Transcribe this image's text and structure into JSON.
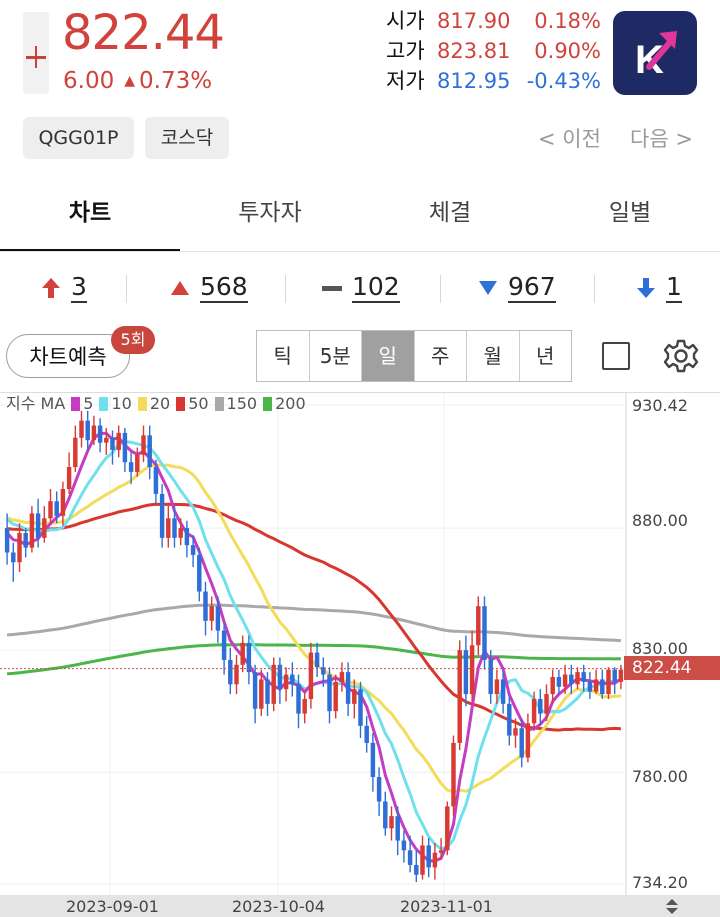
{
  "header": {
    "price": "822.44",
    "change": "6.00",
    "change_pct": "0.73%",
    "open_label": "시가",
    "open_value": "817.90",
    "open_pct": "0.18%",
    "high_label": "고가",
    "high_value": "823.81",
    "high_pct": "0.90%",
    "low_label": "저가",
    "low_value": "812.95",
    "low_pct": "-0.43%",
    "logo_letter": "K",
    "code_chip": "QGG01P",
    "market_chip": "코스닥",
    "prev_link": "< 이전",
    "next_link": "다음 >"
  },
  "tabs": [
    {
      "label": "차트"
    },
    {
      "label": "투자자"
    },
    {
      "label": "체결"
    },
    {
      "label": "일별"
    }
  ],
  "breadth": {
    "upper_limit": "3",
    "up": "568",
    "flat": "102",
    "down": "967",
    "lower_limit": "1"
  },
  "controls": {
    "predict_label": "차트예측",
    "predict_badge": "5회",
    "periods": [
      "틱",
      "5분",
      "일",
      "주",
      "월",
      "년"
    ],
    "active_period": "일"
  },
  "chart_data": {
    "type": "candlestick",
    "legend_prefix": "지수 MA",
    "ma_legend": [
      {
        "label": "5",
        "color": "#c43cc4"
      },
      {
        "label": "10",
        "color": "#6fe0ec"
      },
      {
        "label": "20",
        "color": "#f3dc5a"
      },
      {
        "label": "50",
        "color": "#d8372f"
      },
      {
        "label": "150",
        "color": "#a9a9a9"
      },
      {
        "label": "200",
        "color": "#4bb54b"
      }
    ],
    "y_ticks": [
      "930.42",
      "880.00",
      "830.00",
      "780.00",
      "734.20"
    ],
    "y_tick_values": [
      930.42,
      880,
      830,
      780,
      734.2
    ],
    "ylim": [
      734.2,
      930.42
    ],
    "current_price": "822.44",
    "current_price_value": 822.44,
    "x_ticks": [
      "2023-09-01",
      "2023-10-04",
      "2023-11-01"
    ],
    "candles": [
      [
        880,
        870,
        886,
        865
      ],
      [
        870,
        866,
        874,
        858
      ],
      [
        866,
        878,
        882,
        862
      ],
      [
        878,
        872,
        880,
        868
      ],
      [
        872,
        886,
        889,
        870
      ],
      [
        886,
        876,
        892,
        872
      ],
      [
        876,
        884,
        889,
        874
      ],
      [
        884,
        891,
        896,
        882
      ],
      [
        891,
        885,
        895,
        882
      ],
      [
        885,
        896,
        899,
        881
      ],
      [
        896,
        905,
        911,
        894
      ],
      [
        905,
        917,
        922,
        903
      ],
      [
        917,
        924,
        928,
        913
      ],
      [
        924,
        916,
        928,
        912
      ],
      [
        916,
        922,
        926,
        914
      ],
      [
        922,
        915,
        925,
        911
      ],
      [
        915,
        917,
        921,
        910
      ],
      [
        917,
        912,
        920,
        906
      ],
      [
        912,
        919,
        922,
        909
      ],
      [
        919,
        907,
        921,
        903
      ],
      [
        907,
        903,
        911,
        898
      ],
      [
        903,
        910,
        913,
        901
      ],
      [
        910,
        918,
        922,
        907
      ],
      [
        918,
        905,
        922,
        900
      ],
      [
        905,
        894,
        908,
        890
      ],
      [
        894,
        876,
        898,
        872
      ],
      [
        876,
        884,
        890,
        872
      ],
      [
        884,
        876,
        889,
        872
      ],
      [
        876,
        880,
        884,
        873
      ],
      [
        880,
        873,
        883,
        868
      ],
      [
        873,
        869,
        877,
        864
      ],
      [
        869,
        854,
        872,
        850
      ],
      [
        854,
        842,
        858,
        836
      ],
      [
        842,
        848,
        852,
        838
      ],
      [
        848,
        838,
        852,
        833
      ],
      [
        838,
        826,
        841,
        820
      ],
      [
        826,
        816,
        831,
        812
      ],
      [
        816,
        824,
        828,
        812
      ],
      [
        824,
        833,
        836,
        821
      ],
      [
        833,
        821,
        836,
        816
      ],
      [
        821,
        806,
        824,
        800
      ],
      [
        806,
        818,
        822,
        803
      ],
      [
        818,
        808,
        821,
        803
      ],
      [
        808,
        824,
        827,
        805
      ],
      [
        824,
        814,
        827,
        808
      ],
      [
        814,
        820,
        823,
        809
      ],
      [
        820,
        816,
        825,
        811
      ],
      [
        816,
        804,
        820,
        798
      ],
      [
        804,
        810,
        813,
        800
      ],
      [
        810,
        829,
        833,
        806
      ],
      [
        829,
        823,
        833,
        819
      ],
      [
        823,
        820,
        827,
        815
      ],
      [
        820,
        805,
        823,
        800
      ],
      [
        805,
        817,
        820,
        802
      ],
      [
        817,
        821,
        825,
        813
      ],
      [
        821,
        808,
        825,
        803
      ],
      [
        808,
        814,
        818,
        802
      ],
      [
        814,
        799,
        817,
        794
      ],
      [
        799,
        792,
        803,
        788
      ],
      [
        792,
        778,
        796,
        772
      ],
      [
        778,
        768,
        782,
        762
      ],
      [
        768,
        757,
        772,
        754
      ],
      [
        757,
        762,
        766,
        752
      ],
      [
        762,
        752,
        766,
        746
      ],
      [
        752,
        748,
        756,
        743
      ],
      [
        748,
        742,
        754,
        739
      ],
      [
        742,
        738,
        748,
        735
      ],
      [
        738,
        750,
        754,
        736
      ],
      [
        750,
        741,
        753,
        737
      ],
      [
        741,
        747,
        751,
        736
      ],
      [
        747,
        748,
        753,
        744
      ],
      [
        748,
        766,
        768,
        746
      ],
      [
        766,
        792,
        795,
        762
      ],
      [
        792,
        830,
        834,
        789
      ],
      [
        830,
        812,
        836,
        807
      ],
      [
        812,
        832,
        838,
        809
      ],
      [
        832,
        848,
        852,
        828
      ],
      [
        848,
        826,
        852,
        822
      ],
      [
        826,
        812,
        830,
        808
      ],
      [
        812,
        818,
        822,
        808
      ],
      [
        818,
        808,
        821,
        804
      ],
      [
        808,
        795,
        811,
        791
      ],
      [
        795,
        798,
        802,
        790
      ],
      [
        798,
        786,
        802,
        782
      ],
      [
        786,
        800,
        804,
        784
      ],
      [
        800,
        810,
        813,
        797
      ],
      [
        810,
        804,
        814,
        799
      ],
      [
        804,
        812,
        816,
        801
      ],
      [
        812,
        819,
        822,
        808
      ],
      [
        819,
        815,
        822,
        812
      ],
      [
        815,
        820,
        824,
        812
      ],
      [
        820,
        816,
        824,
        812
      ],
      [
        816,
        821,
        823,
        814
      ],
      [
        821,
        817,
        824,
        813
      ],
      [
        817,
        813,
        821,
        810
      ],
      [
        813,
        818,
        822,
        812
      ],
      [
        818,
        812,
        822,
        810
      ],
      [
        812,
        822,
        823,
        810
      ],
      [
        822,
        817,
        823,
        812
      ],
      [
        817,
        822,
        824,
        814
      ]
    ]
  }
}
